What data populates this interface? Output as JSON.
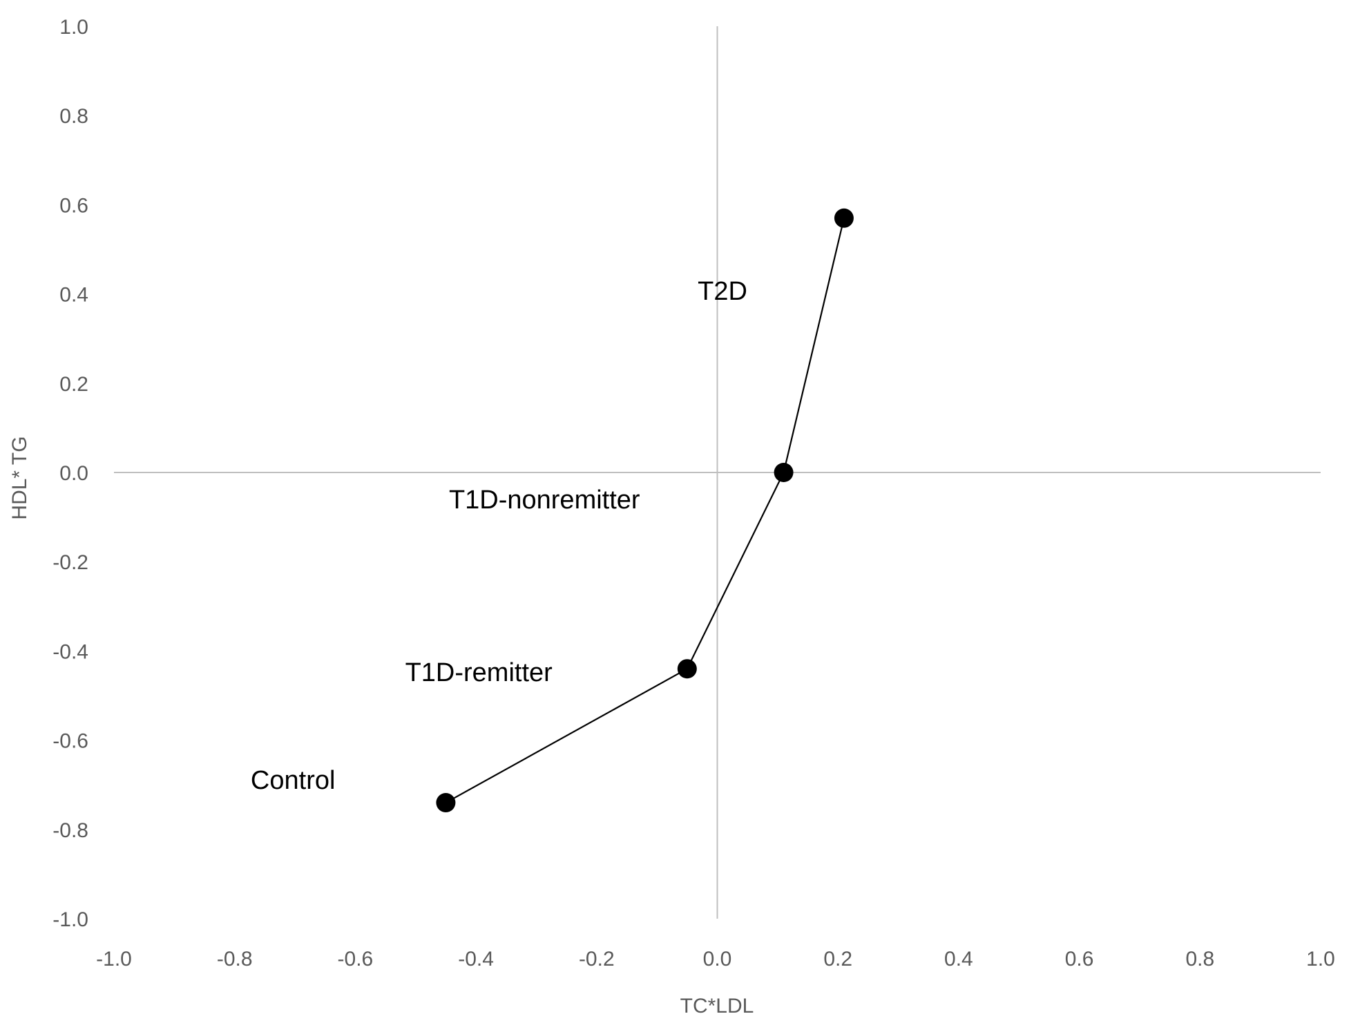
{
  "chart_data": {
    "type": "scatter",
    "title": "",
    "xlabel": "TC*LDL",
    "ylabel": "HDL* TG",
    "xlim": [
      -1.0,
      1.0
    ],
    "ylim": [
      -1.0,
      1.0
    ],
    "x_ticks": [
      "-1.0",
      "-0.8",
      "-0.6",
      "-0.4",
      "-0.2",
      "0.0",
      "0.2",
      "0.4",
      "0.6",
      "0.8",
      "1.0"
    ],
    "y_ticks": [
      "1.0",
      "0.8",
      "0.6",
      "0.4",
      "0.2",
      "0.0",
      "-0.2",
      "-0.4",
      "-0.6",
      "-0.8",
      "-1.0"
    ],
    "grid": false,
    "connected": true,
    "points": [
      {
        "label": "Control",
        "x": -0.45,
        "y": -0.74
      },
      {
        "label": "T1D-remitter",
        "x": -0.05,
        "y": -0.44
      },
      {
        "label": "T1D-nonremitter",
        "x": 0.11,
        "y": 0.0
      },
      {
        "label": "T2D",
        "x": 0.21,
        "y": 0.57
      }
    ],
    "colors": {
      "series": "#000000",
      "axis": "#bfbfbf",
      "tick_text": "#595959"
    }
  }
}
